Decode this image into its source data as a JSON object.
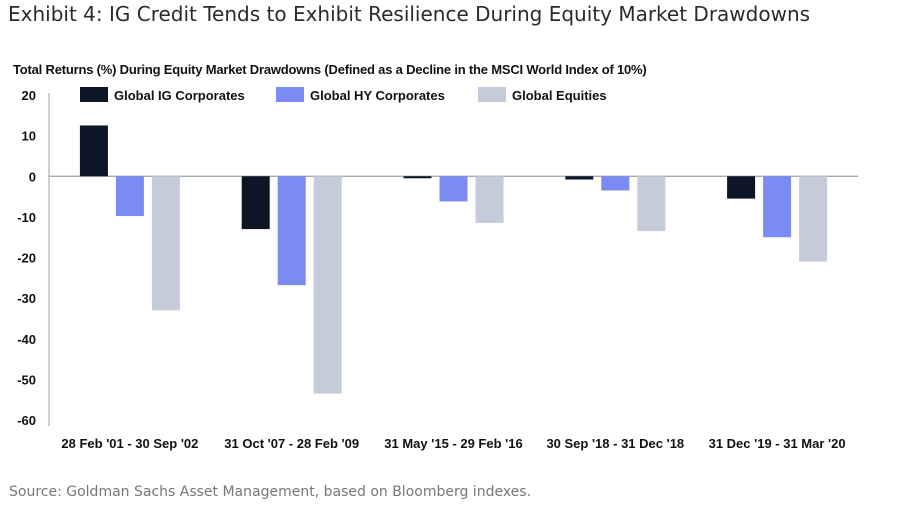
{
  "header": {
    "exhibit_title": "Exhibit 4: IG Credit Tends to Exhibit Resilience During Equity Market Drawdowns"
  },
  "footer": {
    "source": "Source: Goldman Sachs Asset Management, based on Bloomberg indexes."
  },
  "colors": {
    "ig": "#0d1626",
    "hy": "#7b8bf3",
    "eq": "#c5cbd8",
    "axis": "#9aa0aa"
  },
  "chart_data": {
    "type": "bar",
    "title": "Total Returns (%) During Equity Market Drawdowns (Defined as a Decline in the MSCI World Index of 10%)",
    "xlabel": "",
    "ylabel": "",
    "ylim": [
      -60,
      20
    ],
    "yticks": [
      20,
      10,
      0,
      -10,
      -20,
      -30,
      -40,
      -50,
      -60
    ],
    "grid": false,
    "legend_position": "top",
    "categories": [
      "28 Feb '01 - 30 Sep '02",
      "31 Oct '07 - 28 Feb '09",
      "31 May '15 - 29 Feb '16",
      "30 Sep '18 - 31 Dec '18",
      "31 Dec '19 - 31 Mar '20"
    ],
    "series": [
      {
        "name": "Global IG Corporates",
        "color": "#0d1626",
        "values": [
          12.5,
          -13,
          -0.5,
          -0.8,
          -5.5
        ]
      },
      {
        "name": "Global HY Corporates",
        "color": "#7b8bf3",
        "values": [
          -9.8,
          -26.8,
          -6.2,
          -3.5,
          -15
        ]
      },
      {
        "name": "Global Equities",
        "color": "#c5cbd8",
        "values": [
          -33,
          -53.5,
          -11.5,
          -13.5,
          -21
        ]
      }
    ]
  }
}
